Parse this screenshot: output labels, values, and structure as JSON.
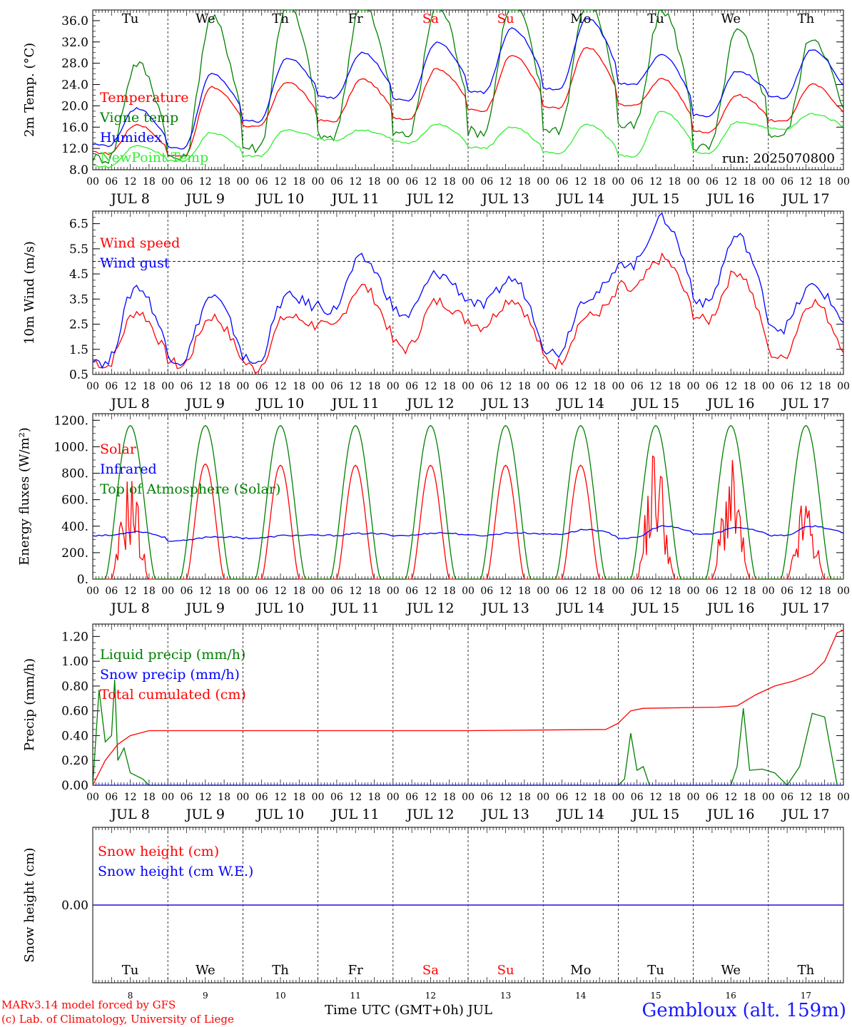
{
  "page": {
    "run_label": "run: 2025070800",
    "xaxis_title": "Time UTC (GMT+0h) JUL",
    "credit_line1": "MARv3.14 model forced by GFS",
    "credit_line2": "(c) Lab. of Climatology, University of Liege",
    "station": "Gembloux (alt. 159m)"
  },
  "chart_data": {
    "type": "line",
    "x_unit": "hours since 2025-07-08 00 UTC",
    "days": [
      {
        "date": "JUL 8",
        "dom": "8",
        "weekday": "Tu",
        "weekend": false
      },
      {
        "date": "JUL 9",
        "dom": "9",
        "weekday": "We",
        "weekend": false
      },
      {
        "date": "JUL 10",
        "dom": "10",
        "weekday": "Th",
        "weekend": false
      },
      {
        "date": "JUL 11",
        "dom": "11",
        "weekday": "Fr",
        "weekend": false
      },
      {
        "date": "JUL 12",
        "dom": "12",
        "weekday": "Sa",
        "weekend": true
      },
      {
        "date": "JUL 13",
        "dom": "13",
        "weekday": "Su",
        "weekend": true
      },
      {
        "date": "JUL 14",
        "dom": "14",
        "weekday": "Mo",
        "weekend": false
      },
      {
        "date": "JUL 15",
        "dom": "15",
        "weekday": "Tu",
        "weekend": false
      },
      {
        "date": "JUL 16",
        "dom": "16",
        "weekday": "We",
        "weekend": false
      },
      {
        "date": "JUL 17",
        "dom": "17",
        "weekday": "Th",
        "weekend": false
      }
    ],
    "hour_tick_labels": [
      "00",
      "06",
      "12",
      "18"
    ],
    "colors": {
      "red": "#ff0000",
      "green": "#008000",
      "blue": "#0000ff",
      "light_green": "#33ee33",
      "weekend": "#ff0000"
    },
    "panels": [
      {
        "ylabel": "2m Temp. (°C)",
        "ylim": [
          8,
          38
        ],
        "yticks": [
          8,
          12,
          16,
          20,
          24,
          28,
          32,
          36
        ],
        "ytick_labels": [
          "8.0",
          "12.0",
          "16.0",
          "20.0",
          "24.0",
          "28.0",
          "32.0",
          "36.0"
        ],
        "show_weekdays": true,
        "series": [
          {
            "name": "Temperature",
            "color": "red",
            "daily": [
              [
                11.0,
                16.5
              ],
              [
                10.5,
                23.5
              ],
              [
                16.0,
                24.5
              ],
              [
                17.0,
                25.0
              ],
              [
                17.5,
                27.0
              ],
              [
                19.0,
                29.5
              ],
              [
                19.5,
                31.0
              ],
              [
                20.0,
                25.0
              ],
              [
                15.0,
                22.0
              ],
              [
                17.0,
                24.0
              ]
            ]
          },
          {
            "name": "Vigne temp",
            "color": "green",
            "daily": [
              [
                10.0,
                28.0
              ],
              [
                10.0,
                36.5
              ],
              [
                12.0,
                39.0
              ],
              [
                14.0,
                40.0
              ],
              [
                14.5,
                39.0
              ],
              [
                15.0,
                40.0
              ],
              [
                15.5,
                40.0
              ],
              [
                16.0,
                38.0
              ],
              [
                12.0,
                34.0
              ],
              [
                14.5,
                33.0
              ]
            ]
          },
          {
            "name": "Humidex",
            "color": "blue",
            "daily": [
              [
                12.5,
                19.5
              ],
              [
                12.0,
                26.0
              ],
              [
                17.0,
                29.0
              ],
              [
                21.5,
                30.0
              ],
              [
                21.0,
                32.0
              ],
              [
                22.5,
                34.5
              ],
              [
                23.0,
                36.5
              ],
              [
                24.0,
                29.5
              ],
              [
                18.0,
                26.5
              ],
              [
                21.5,
                30.5
              ]
            ]
          },
          {
            "name": "NewPoint Temp",
            "color": "light_green",
            "daily": [
              [
                8.5,
                12.5
              ],
              [
                9.5,
                15.0
              ],
              [
                10.5,
                15.5
              ],
              [
                13.5,
                15.5
              ],
              [
                13.0,
                16.5
              ],
              [
                12.0,
                16.0
              ],
              [
                11.0,
                16.5
              ],
              [
                10.5,
                19.0
              ],
              [
                11.0,
                17.0
              ],
              [
                15.5,
                18.5
              ]
            ]
          }
        ]
      },
      {
        "ylabel": "10m Wind (m/s)",
        "ylim": [
          0.5,
          7.0
        ],
        "yticks": [
          0.5,
          1.5,
          2.5,
          3.5,
          4.5,
          5.5,
          6.5
        ],
        "ytick_labels": [
          "0.5",
          "1.5",
          "2.5",
          "3.5",
          "4.5",
          "5.5",
          "6.5"
        ],
        "ref_line": 5.0,
        "series": [
          {
            "name": "Wind speed",
            "color": "red",
            "daily": [
              [
                0.8,
                3.0
              ],
              [
                0.8,
                2.8
              ],
              [
                0.7,
                2.8
              ],
              [
                2.3,
                4.0
              ],
              [
                1.5,
                3.4
              ],
              [
                2.4,
                3.5
              ],
              [
                0.9,
                2.8
              ],
              [
                3.8,
                5.1
              ],
              [
                2.6,
                4.6
              ],
              [
                1.1,
                3.4
              ]
            ]
          },
          {
            "name": "Wind gust",
            "color": "blue",
            "daily": [
              [
                0.9,
                4.0
              ],
              [
                1.0,
                3.6
              ],
              [
                0.9,
                3.6
              ],
              [
                3.0,
                5.1
              ],
              [
                2.8,
                4.5
              ],
              [
                3.2,
                4.3
              ],
              [
                1.3,
                3.6
              ],
              [
                4.8,
                6.7
              ],
              [
                3.3,
                6.0
              ],
              [
                2.3,
                4.0
              ]
            ]
          }
        ]
      },
      {
        "ylabel": "Energy fluxes (W/m²)",
        "ylim": [
          0,
          1250
        ],
        "yticks": [
          0,
          200,
          400,
          600,
          800,
          1000,
          1200
        ],
        "ytick_labels": [
          "0.",
          "200.",
          "400.",
          "600.",
          "800.",
          "1000.",
          "1200."
        ],
        "series": [
          {
            "name": "Solar",
            "color": "red",
            "daily_peak": [
              700,
              870,
              860,
              860,
              860,
              860,
              860,
              880,
              760,
              540
            ]
          },
          {
            "name": "Infrared",
            "color": "blue",
            "daily": [
              [
                330,
                360
              ],
              [
                290,
                320
              ],
              [
                310,
                330
              ],
              [
                330,
                345
              ],
              [
                330,
                350
              ],
              [
                330,
                350
              ],
              [
                340,
                375
              ],
              [
                310,
                400
              ],
              [
                340,
                390
              ],
              [
                330,
                400
              ]
            ]
          },
          {
            "name": "Top of Atmosphere (Solar)",
            "color": "green",
            "daily_peak": [
              1160,
              1160,
              1160,
              1160,
              1160,
              1160,
              1160,
              1160,
              1160,
              1160
            ]
          }
        ]
      },
      {
        "ylabel": "Precip (mm/h)",
        "ylim": [
          0,
          1.3
        ],
        "yticks": [
          0,
          0.2,
          0.4,
          0.6,
          0.8,
          1.0,
          1.2
        ],
        "ytick_labels": [
          "0.00",
          "0.20",
          "0.40",
          "0.60",
          "0.80",
          "1.00",
          "1.20"
        ],
        "series": [
          {
            "name": "Liquid precip (mm/h)",
            "color": "green",
            "points": [
              [
                0,
                0.0
              ],
              [
                2,
                0.77
              ],
              [
                4,
                0.35
              ],
              [
                6,
                0.4
              ],
              [
                7,
                0.85
              ],
              [
                8,
                0.2
              ],
              [
                10,
                0.3
              ],
              [
                12,
                0.1
              ],
              [
                16,
                0.05
              ],
              [
                18,
                0.0
              ],
              [
                168,
                0.0
              ],
              [
                170,
                0.05
              ],
              [
                172,
                0.42
              ],
              [
                174,
                0.12
              ],
              [
                176,
                0.15
              ],
              [
                178,
                0.0
              ],
              [
                204,
                0.0
              ],
              [
                206,
                0.15
              ],
              [
                208,
                0.62
              ],
              [
                210,
                0.12
              ],
              [
                214,
                0.13
              ],
              [
                218,
                0.1
              ],
              [
                222,
                0.0
              ],
              [
                226,
                0.15
              ],
              [
                230,
                0.58
              ],
              [
                234,
                0.55
              ],
              [
                238,
                0.0
              ]
            ]
          },
          {
            "name": "Snow precip (mm/h)",
            "color": "blue",
            "points": [
              [
                0,
                0.0
              ],
              [
                240,
                0.0
              ]
            ]
          },
          {
            "name": "Total cumulated (cm)",
            "color": "red",
            "points": [
              [
                0,
                0.0
              ],
              [
                4,
                0.2
              ],
              [
                8,
                0.33
              ],
              [
                12,
                0.4
              ],
              [
                18,
                0.44
              ],
              [
                60,
                0.44
              ],
              [
                120,
                0.44
              ],
              [
                164,
                0.45
              ],
              [
                168,
                0.5
              ],
              [
                172,
                0.6
              ],
              [
                176,
                0.62
              ],
              [
                200,
                0.63
              ],
              [
                206,
                0.64
              ],
              [
                212,
                0.73
              ],
              [
                218,
                0.8
              ],
              [
                224,
                0.84
              ],
              [
                230,
                0.9
              ],
              [
                234,
                1.0
              ],
              [
                238,
                1.23
              ],
              [
                240,
                1.25
              ]
            ]
          }
        ]
      },
      {
        "ylabel": "Snow height (cm)",
        "ylim": [
          -1,
          1
        ],
        "yticks": [
          0
        ],
        "ytick_labels": [
          "0.00"
        ],
        "show_weekdays": true,
        "series": [
          {
            "name": "Snow height (cm)",
            "color": "red",
            "points": [
              [
                0,
                0.0
              ],
              [
                240,
                0.0
              ]
            ]
          },
          {
            "name": "Snow height (cm W.E.)",
            "color": "blue",
            "points": [
              [
                0,
                0.0
              ],
              [
                240,
                0.0
              ]
            ]
          }
        ]
      }
    ]
  }
}
